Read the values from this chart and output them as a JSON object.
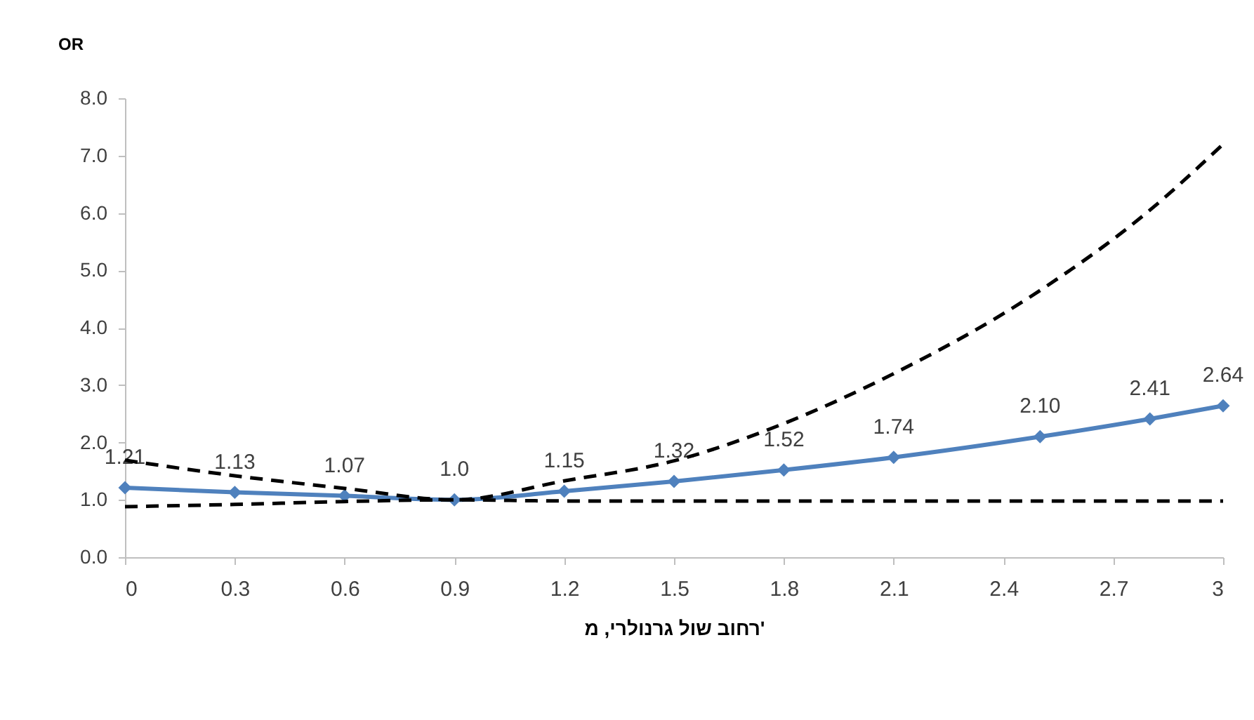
{
  "chart_data": {
    "type": "line",
    "ylabel": "OR",
    "xlabel": "רחוב שול גרנולרי, מ'",
    "x": [
      0,
      0.3,
      0.6,
      0.9,
      1.2,
      1.5,
      1.8,
      2.1,
      2.5,
      2.8,
      3
    ],
    "xlim": [
      0,
      3
    ],
    "xticks": [
      0,
      0.3,
      0.6,
      0.9,
      1.2,
      1.5,
      1.8,
      2.1,
      2.4,
      2.7,
      3
    ],
    "ylim": [
      0,
      8
    ],
    "yticks": [
      {
        "value": 0,
        "label": "0.0"
      },
      {
        "value": 1,
        "label": "1.0"
      },
      {
        "value": 2,
        "label": "2.0"
      },
      {
        "value": 3,
        "label": "3.0"
      },
      {
        "value": 4,
        "label": "4.0"
      },
      {
        "value": 5,
        "label": "5.0"
      },
      {
        "value": 6,
        "label": "6.0"
      },
      {
        "value": 7,
        "label": "7.0"
      },
      {
        "value": 8,
        "label": "8.0"
      }
    ],
    "grid": false,
    "series": [
      {
        "color": "#4f81bd",
        "marker": "diamond",
        "line_style": "solid",
        "values": [
          1.21,
          1.13,
          1.07,
          1.0,
          1.15,
          1.32,
          1.52,
          1.74,
          2.1,
          2.41,
          2.64
        ],
        "value_labels": [
          "1.21",
          "1.13",
          "1.07",
          "1.0",
          "1.15",
          "1.32",
          "1.52",
          "1.74",
          "2.10",
          "2.41",
          "2.64"
        ]
      },
      {
        "color": "#000000",
        "marker": "none",
        "line_style": "dashed",
        "values": [
          1.69,
          1.42,
          1.2,
          1.0,
          1.33,
          1.68,
          2.33,
          3.2,
          4.65,
          6.05,
          7.2
        ]
      },
      {
        "color": "#000000",
        "marker": "none",
        "line_style": "dashed",
        "values": [
          0.88,
          0.92,
          0.97,
          1.0,
          0.98,
          0.98,
          0.98,
          0.98,
          0.98,
          0.98,
          0.98
        ]
      }
    ]
  }
}
